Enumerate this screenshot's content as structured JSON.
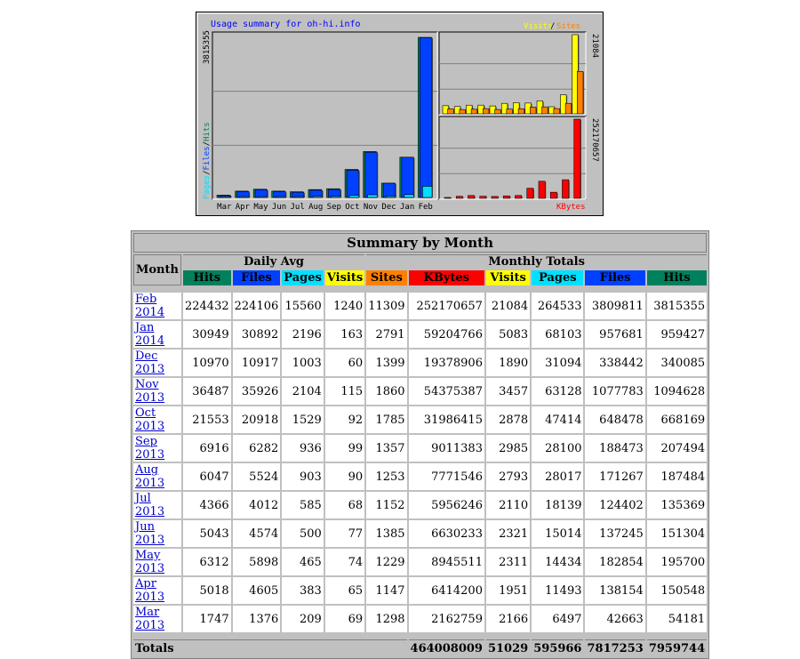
{
  "chart_data": {
    "type": "bar",
    "title": "Usage summary for oh-hi.info",
    "categories": [
      "Mar",
      "Apr",
      "May",
      "Jun",
      "Jul",
      "Aug",
      "Sep",
      "Oct",
      "Nov",
      "Dec",
      "Jan",
      "Feb"
    ],
    "left_panel": {
      "legend": [
        "Pages",
        "Files",
        "Hits"
      ],
      "ymax_label": "3815355",
      "ymax": 3815355,
      "series": [
        {
          "name": "Hits",
          "color": "#00805c",
          "values": [
            54181,
            150548,
            195700,
            151304,
            135369,
            187484,
            207494,
            668169,
            1094628,
            340085,
            959427,
            3815355
          ]
        },
        {
          "name": "Files",
          "color": "#0040ff",
          "values": [
            42663,
            138154,
            182854,
            137245,
            124402,
            171267,
            188473,
            648478,
            1077783,
            338442,
            957681,
            3809811
          ]
        },
        {
          "name": "Pages",
          "color": "#00e0ff",
          "values": [
            6497,
            11493,
            14434,
            15014,
            18139,
            28017,
            28100,
            47414,
            63128,
            31094,
            68103,
            264533
          ]
        }
      ]
    },
    "right_top_panel": {
      "legend": [
        "Visits",
        "Sites"
      ],
      "ymax_label": "21084",
      "ymax": 21084,
      "series": [
        {
          "name": "Visits",
          "color": "#ffff00",
          "values": [
            2166,
            1951,
            2311,
            2321,
            2110,
            2793,
            2985,
            2878,
            3457,
            1890,
            5083,
            21084
          ]
        },
        {
          "name": "Sites",
          "color": "#ff8000",
          "values": [
            1298,
            1147,
            1229,
            1385,
            1152,
            1253,
            1357,
            1785,
            1860,
            1399,
            2791,
            11309
          ]
        }
      ]
    },
    "right_bottom_panel": {
      "legend": [
        "KBytes"
      ],
      "ymax_label": "252170657",
      "ymax": 252170657,
      "series": [
        {
          "name": "KBytes",
          "color": "#ff0000",
          "values": [
            2162759,
            6414200,
            8945511,
            6630233,
            5956246,
            7771546,
            9011383,
            31986415,
            54375387,
            19378906,
            59204766,
            252170657
          ]
        }
      ]
    },
    "colors": {
      "background": "#c0c0c0",
      "plot_bg": "#c0c0c0",
      "title": "#0000ff",
      "grid": "#808080"
    }
  },
  "summary": {
    "title": "Summary by Month",
    "month_header": "Month",
    "daily_avg_header": "Daily Avg",
    "monthly_totals_header": "Monthly Totals",
    "daily_cols": [
      "Hits",
      "Files",
      "Pages",
      "Visits"
    ],
    "monthly_cols": [
      "Sites",
      "KBytes",
      "Visits",
      "Pages",
      "Files",
      "Hits"
    ],
    "rows": [
      {
        "month": "Feb 2014",
        "d_hits": "224432",
        "d_files": "224106",
        "d_pages": "15560",
        "d_visits": "1240",
        "sites": "11309",
        "kbytes": "252170657",
        "visits": "21084",
        "pages": "264533",
        "files": "3809811",
        "hits": "3815355"
      },
      {
        "month": "Jan 2014",
        "d_hits": "30949",
        "d_files": "30892",
        "d_pages": "2196",
        "d_visits": "163",
        "sites": "2791",
        "kbytes": "59204766",
        "visits": "5083",
        "pages": "68103",
        "files": "957681",
        "hits": "959427"
      },
      {
        "month": "Dec 2013",
        "d_hits": "10970",
        "d_files": "10917",
        "d_pages": "1003",
        "d_visits": "60",
        "sites": "1399",
        "kbytes": "19378906",
        "visits": "1890",
        "pages": "31094",
        "files": "338442",
        "hits": "340085"
      },
      {
        "month": "Nov 2013",
        "d_hits": "36487",
        "d_files": "35926",
        "d_pages": "2104",
        "d_visits": "115",
        "sites": "1860",
        "kbytes": "54375387",
        "visits": "3457",
        "pages": "63128",
        "files": "1077783",
        "hits": "1094628"
      },
      {
        "month": "Oct 2013",
        "d_hits": "21553",
        "d_files": "20918",
        "d_pages": "1529",
        "d_visits": "92",
        "sites": "1785",
        "kbytes": "31986415",
        "visits": "2878",
        "pages": "47414",
        "files": "648478",
        "hits": "668169"
      },
      {
        "month": "Sep 2013",
        "d_hits": "6916",
        "d_files": "6282",
        "d_pages": "936",
        "d_visits": "99",
        "sites": "1357",
        "kbytes": "9011383",
        "visits": "2985",
        "pages": "28100",
        "files": "188473",
        "hits": "207494"
      },
      {
        "month": "Aug 2013",
        "d_hits": "6047",
        "d_files": "5524",
        "d_pages": "903",
        "d_visits": "90",
        "sites": "1253",
        "kbytes": "7771546",
        "visits": "2793",
        "pages": "28017",
        "files": "171267",
        "hits": "187484"
      },
      {
        "month": "Jul 2013",
        "d_hits": "4366",
        "d_files": "4012",
        "d_pages": "585",
        "d_visits": "68",
        "sites": "1152",
        "kbytes": "5956246",
        "visits": "2110",
        "pages": "18139",
        "files": "124402",
        "hits": "135369"
      },
      {
        "month": "Jun 2013",
        "d_hits": "5043",
        "d_files": "4574",
        "d_pages": "500",
        "d_visits": "77",
        "sites": "1385",
        "kbytes": "6630233",
        "visits": "2321",
        "pages": "15014",
        "files": "137245",
        "hits": "151304"
      },
      {
        "month": "May 2013",
        "d_hits": "6312",
        "d_files": "5898",
        "d_pages": "465",
        "d_visits": "74",
        "sites": "1229",
        "kbytes": "8945511",
        "visits": "2311",
        "pages": "14434",
        "files": "182854",
        "hits": "195700"
      },
      {
        "month": "Apr 2013",
        "d_hits": "5018",
        "d_files": "4605",
        "d_pages": "383",
        "d_visits": "65",
        "sites": "1147",
        "kbytes": "6414200",
        "visits": "1951",
        "pages": "11493",
        "files": "138154",
        "hits": "150548"
      },
      {
        "month": "Mar 2013",
        "d_hits": "1747",
        "d_files": "1376",
        "d_pages": "209",
        "d_visits": "69",
        "sites": "1298",
        "kbytes": "2162759",
        "visits": "2166",
        "pages": "6497",
        "files": "42663",
        "hits": "54181"
      }
    ],
    "totals": {
      "label": "Totals",
      "kbytes": "464008009",
      "visits": "51029",
      "pages": "595966",
      "files": "7817253",
      "hits": "7959744"
    }
  }
}
